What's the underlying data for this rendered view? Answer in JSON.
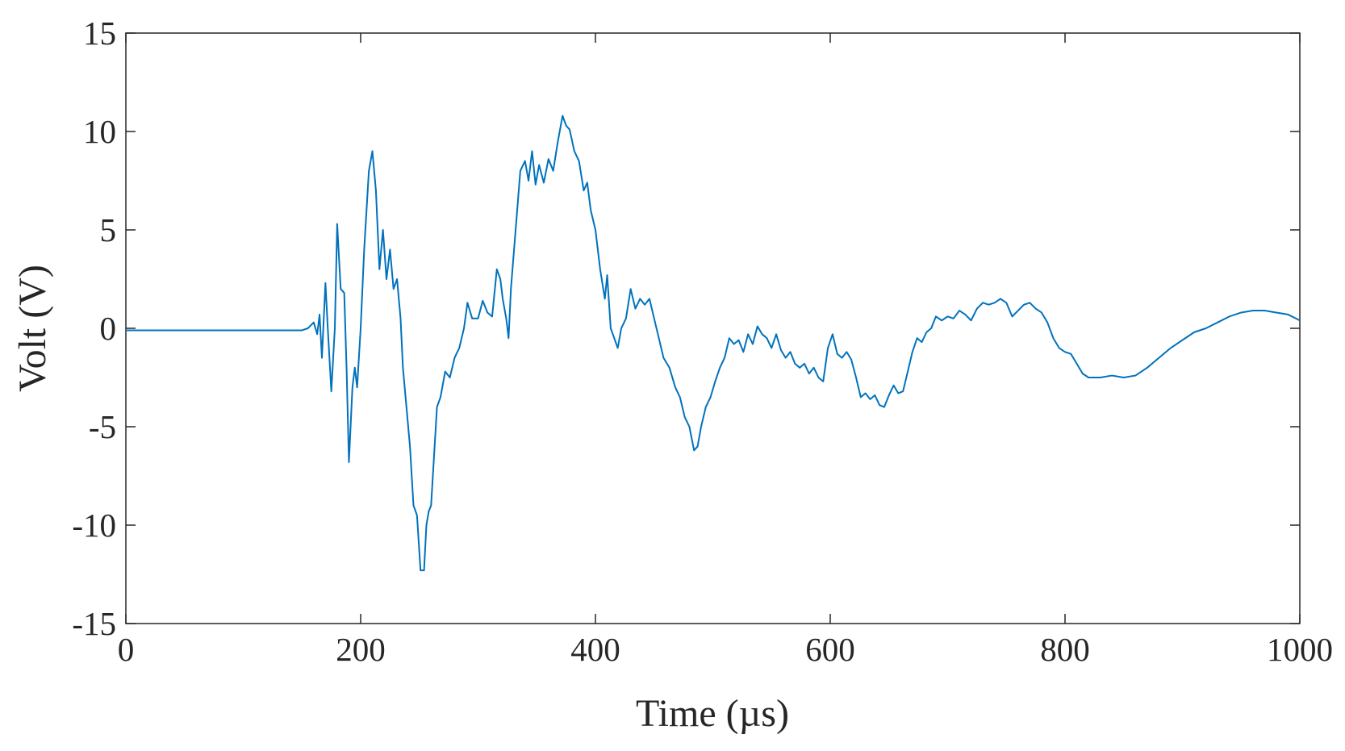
{
  "chart_data": {
    "type": "line",
    "xlabel": "Time (µs)",
    "ylabel": "Volt (V)",
    "xlim": [
      0,
      1000
    ],
    "ylim": [
      -15,
      15
    ],
    "xticks": [
      0,
      200,
      400,
      600,
      800,
      1000
    ],
    "yticks": [
      -15,
      -10,
      -5,
      0,
      5,
      10,
      15
    ],
    "grid": false,
    "series": [
      {
        "color": "#0072bd",
        "x": [
          0,
          150,
          155,
          160,
          163,
          165,
          167,
          170,
          172,
          175,
          178,
          180,
          183,
          186,
          188,
          190,
          193,
          195,
          197,
          200,
          203,
          207,
          210,
          213,
          216,
          219,
          222,
          225,
          228,
          231,
          234,
          236,
          239,
          242,
          245,
          248,
          251,
          254,
          256,
          258,
          260,
          262,
          265,
          268,
          272,
          276,
          280,
          284,
          288,
          291,
          295,
          300,
          304,
          308,
          312,
          316,
          319,
          321,
          324,
          326,
          328,
          332,
          336,
          340,
          343,
          346,
          349,
          352,
          356,
          360,
          364,
          368,
          372,
          375,
          378,
          382,
          386,
          390,
          393,
          396,
          400,
          404,
          408,
          410,
          413,
          416,
          419,
          422,
          426,
          430,
          434,
          438,
          442,
          446,
          450,
          454,
          458,
          463,
          468,
          472,
          476,
          480,
          484,
          487,
          490,
          494,
          498,
          502,
          506,
          510,
          514,
          518,
          522,
          526,
          530,
          534,
          538,
          542,
          546,
          550,
          554,
          558,
          562,
          566,
          570,
          574,
          578,
          582,
          586,
          590,
          594,
          598,
          602,
          606,
          610,
          614,
          618,
          622,
          626,
          630,
          634,
          638,
          642,
          646,
          650,
          654,
          658,
          662,
          666,
          670,
          674,
          678,
          682,
          686,
          690,
          695,
          700,
          705,
          710,
          715,
          720,
          725,
          730,
          735,
          740,
          745,
          750,
          755,
          760,
          765,
          770,
          775,
          780,
          785,
          790,
          795,
          800,
          805,
          810,
          815,
          820,
          830,
          840,
          850,
          860,
          870,
          880,
          890,
          900,
          910,
          920,
          930,
          940,
          950,
          960,
          970,
          980,
          990,
          1000
        ],
        "values": [
          -0.1,
          -0.1,
          0,
          0.3,
          -0.3,
          0.7,
          -1.5,
          2.3,
          0,
          -3.2,
          0,
          5.3,
          2,
          1.8,
          -2,
          -6.8,
          -3,
          -2,
          -3,
          0,
          4,
          8,
          9,
          7,
          3,
          5,
          2.5,
          4,
          2,
          2.5,
          0.5,
          -2,
          -4,
          -6,
          -9,
          -9.5,
          -12.3,
          -12.3,
          -10,
          -9.3,
          -9,
          -7,
          -4,
          -3.5,
          -2.2,
          -2.5,
          -1.5,
          -1,
          0,
          1.3,
          0.5,
          0.5,
          1.4,
          0.8,
          0.6,
          3,
          2.5,
          1.5,
          0.5,
          -0.5,
          2,
          5,
          8,
          8.5,
          7.5,
          9,
          7.3,
          8.3,
          7.4,
          8.6,
          8,
          9.5,
          10.8,
          10.3,
          10.1,
          9,
          8.5,
          7,
          7.4,
          6,
          5,
          3,
          1.5,
          2.7,
          0,
          -0.5,
          -1,
          0,
          0.5,
          2,
          1,
          1.5,
          1.2,
          1.5,
          0.5,
          -0.5,
          -1.5,
          -2,
          -3,
          -3.5,
          -4.5,
          -5,
          -6.2,
          -6,
          -5,
          -4,
          -3.5,
          -2.7,
          -2,
          -1.5,
          -0.5,
          -0.8,
          -0.6,
          -1.2,
          -0.3,
          -0.8,
          0.1,
          -0.3,
          -0.5,
          -1,
          -0.3,
          -1.1,
          -1.5,
          -1.2,
          -1.8,
          -2,
          -1.8,
          -2.3,
          -2,
          -2.5,
          -2.7,
          -1,
          -0.3,
          -1.3,
          -1.5,
          -1.2,
          -1.6,
          -2.5,
          -3.5,
          -3.3,
          -3.6,
          -3.4,
          -3.9,
          -4,
          -3.4,
          -2.9,
          -3.3,
          -3.2,
          -2.2,
          -1.2,
          -0.5,
          -0.7,
          -0.2,
          0,
          0.6,
          0.4,
          0.6,
          0.5,
          0.9,
          0.7,
          0.4,
          1,
          1.3,
          1.2,
          1.3,
          1.5,
          1.3,
          0.6,
          0.9,
          1.2,
          1.3,
          1,
          0.8,
          0.3,
          -0.5,
          -1,
          -1.2,
          -1.3,
          -1.8,
          -2.3,
          -2.5,
          -2.5,
          -2.4,
          -2.5,
          -2.4,
          -2,
          -1.5,
          -1,
          -0.6,
          -0.2,
          0,
          0.3,
          0.6,
          0.8,
          0.9,
          0.9,
          0.8,
          0.7,
          0.4
        ]
      }
    ]
  }
}
